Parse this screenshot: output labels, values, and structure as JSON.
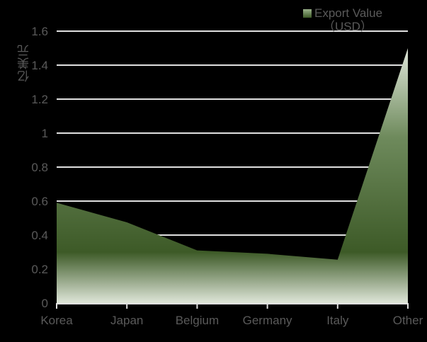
{
  "chart_data": {
    "type": "area",
    "title": "",
    "xlabel": "",
    "ylabel": "亿美元",
    "categories": [
      "Korea",
      "Japan",
      "Belgium",
      "Germany",
      "Italy",
      "Other"
    ],
    "series": [
      {
        "name": "Export Value (USD)",
        "values": [
          0.59,
          0.475,
          0.31,
          0.29,
          0.255,
          1.5
        ]
      }
    ],
    "ylim": [
      0,
      1.6
    ],
    "yticks": [
      "0",
      "0.2",
      "0.4",
      "0.6",
      "0.8",
      "1",
      "1.2",
      "1.4",
      "1.6"
    ],
    "grid": true,
    "legend_position": "top-right",
    "colors": {
      "fill_top": "#dfe6d9",
      "fill_mid": "#3d5a27",
      "fill_bottom": "#dfe6d9",
      "grid": "#e0e0e0",
      "background": "#000000"
    }
  },
  "legend": {
    "line1": "Export Value",
    "line2": "（USD）"
  },
  "axis": {
    "ylabel": "亿美元"
  }
}
